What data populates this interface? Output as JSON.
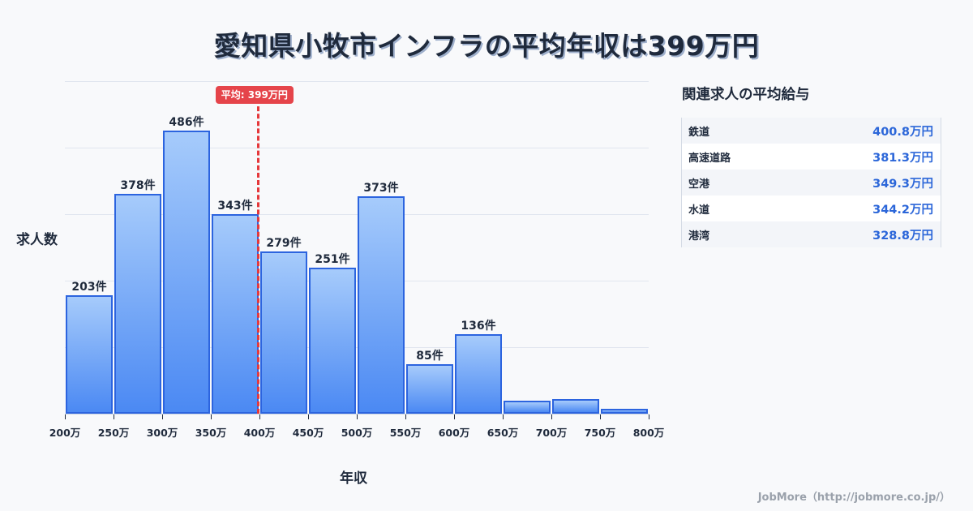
{
  "title": "愛知県小牧市インフラの平均年収は399万円",
  "chart": {
    "ylabel": "求人数",
    "xlabel": "年収",
    "mean_label": "平均: 399万円",
    "bar_labels": [
      "203件",
      "378件",
      "486件",
      "343件",
      "279件",
      "251件",
      "373件",
      "85件",
      "136件",
      "",
      "",
      ""
    ],
    "tick_labels": [
      "200万",
      "250万",
      "300万",
      "350万",
      "400万",
      "450万",
      "500万",
      "550万",
      "600万",
      "650万",
      "700万",
      "750万",
      "800万"
    ]
  },
  "sidebar": {
    "title": "関連求人の平均給与",
    "rows": [
      {
        "name": "鉄道",
        "value": "400.8万円"
      },
      {
        "name": "高速道路",
        "value": "381.3万円"
      },
      {
        "name": "空港",
        "value": "349.3万円"
      },
      {
        "name": "水道",
        "value": "344.2万円"
      },
      {
        "name": "港湾",
        "value": "328.8万円"
      }
    ]
  },
  "footer": "JobMore（http://jobmore.co.jp/）",
  "colors": {
    "bar_border": "#2c64df",
    "bar_top": "#a6cbfb",
    "bar_bottom": "#4b89f3",
    "mean_line": "#e5383b",
    "value_text": "#2b66d9"
  },
  "chart_data": {
    "type": "bar",
    "title": "愛知県小牧市インフラの平均年収は399万円",
    "xlabel": "年収",
    "ylabel": "求人数",
    "categories": [
      "200-250万",
      "250-300万",
      "300-350万",
      "350-400万",
      "400-450万",
      "450-500万",
      "500-550万",
      "550-600万",
      "600-650万",
      "650-700万",
      "700-750万",
      "750-800万"
    ],
    "bin_edges": [
      200,
      250,
      300,
      350,
      400,
      450,
      500,
      550,
      600,
      650,
      700,
      750,
      800
    ],
    "values": [
      203,
      378,
      486,
      343,
      279,
      251,
      373,
      85,
      136,
      22,
      25,
      8
    ],
    "value_labels": [
      "203件",
      "378件",
      "486件",
      "343件",
      "279件",
      "251件",
      "373件",
      "85件",
      "136件",
      null,
      null,
      null
    ],
    "mean": 399,
    "mean_label": "平均: 399万円",
    "xlim": [
      200,
      800
    ],
    "ylim": [
      0,
      571
    ],
    "grid": true,
    "legend": null,
    "side_table": {
      "title": "関連求人の平均給与",
      "rows": [
        [
          "鉄道",
          400.8
        ],
        [
          "高速道路",
          381.3
        ],
        [
          "空港",
          349.3
        ],
        [
          "水道",
          344.2
        ],
        [
          "港湾",
          328.8
        ]
      ],
      "unit": "万円"
    }
  }
}
